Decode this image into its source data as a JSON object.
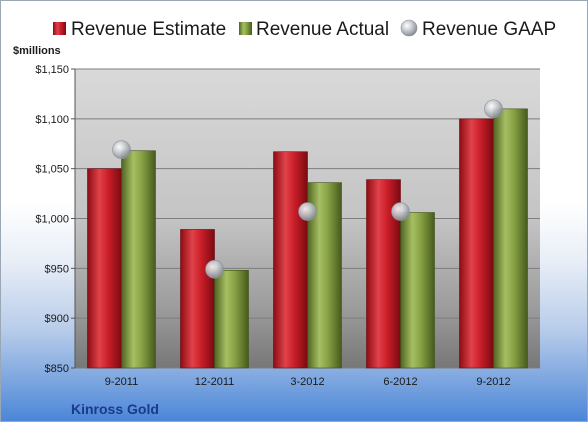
{
  "chart_data": {
    "type": "bar",
    "unit_label": "$millions",
    "company": "Kinross Gold",
    "categories": [
      "9-2011",
      "12-2011",
      "3-2012",
      "6-2012",
      "9-2012"
    ],
    "series": [
      {
        "name": "Revenue Estimate",
        "type": "bar",
        "color": "#cc1f2a",
        "values": [
          1050,
          989,
          1067,
          1039,
          1100
        ]
      },
      {
        "name": "Revenue Actual",
        "type": "bar",
        "color": "#7f9a3c",
        "values": [
          1068,
          948,
          1036,
          1006,
          1110
        ]
      },
      {
        "name": "Revenue GAAP",
        "type": "scatter",
        "color": "#b8bcc4",
        "values": [
          1069,
          949,
          1007,
          1007,
          1110
        ]
      }
    ],
    "ylim": [
      850,
      1150
    ],
    "yticks": [
      850,
      900,
      950,
      1000,
      1050,
      1100,
      1150
    ],
    "ytick_labels": [
      "$850",
      "$900",
      "$950",
      "$1,000",
      "$1,050",
      "$1,100",
      "$1,150"
    ],
    "grid": true,
    "legend": "top"
  }
}
